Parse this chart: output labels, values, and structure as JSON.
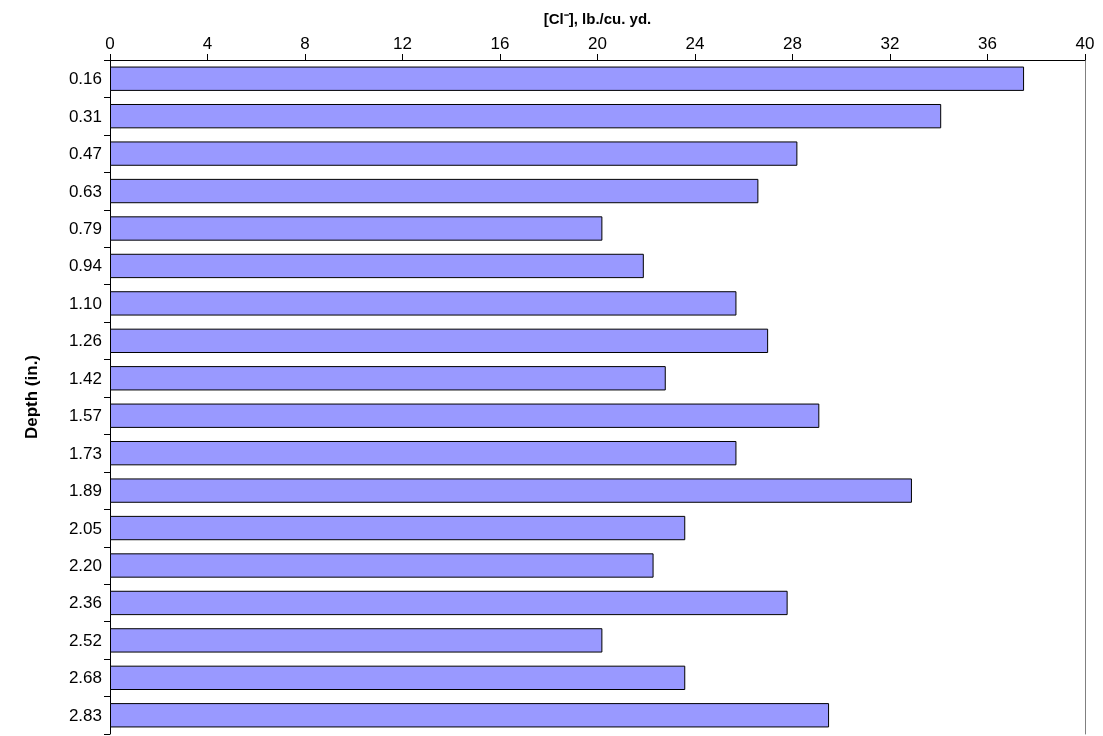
{
  "chart_data": {
    "type": "bar",
    "orientation": "horizontal",
    "xlabel": "[Cl⁻], lb./cu. yd.",
    "ylabel": "Depth (in.)",
    "categories": [
      "0.16",
      "0.31",
      "0.47",
      "0.63",
      "0.79",
      "0.94",
      "1.10",
      "1.26",
      "1.42",
      "1.57",
      "1.73",
      "1.89",
      "2.05",
      "2.20",
      "2.36",
      "2.52",
      "2.68",
      "2.83"
    ],
    "values": [
      37.5,
      34.1,
      28.2,
      26.6,
      20.2,
      21.9,
      25.7,
      27.0,
      22.8,
      29.1,
      25.7,
      32.9,
      23.6,
      22.3,
      27.8,
      20.2,
      23.6,
      29.5
    ],
    "color": "#9999ff",
    "xlim": [
      0,
      40
    ],
    "xticks": [
      0,
      4,
      8,
      12,
      16,
      20,
      24,
      28,
      32,
      36,
      40
    ],
    "grid": false
  }
}
